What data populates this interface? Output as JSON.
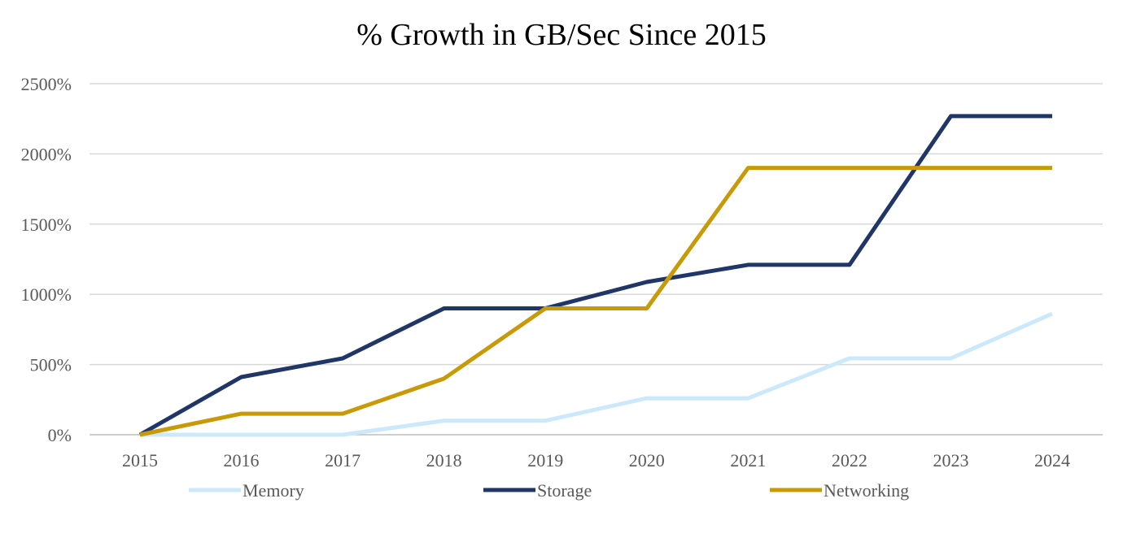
{
  "chart_data": {
    "type": "line",
    "title": "% Growth in GB/Sec Since 2015",
    "xlabel": "",
    "ylabel": "",
    "categories": [
      "2015",
      "2016",
      "2017",
      "2018",
      "2019",
      "2020",
      "2021",
      "2022",
      "2023",
      "2024"
    ],
    "ylim": [
      0,
      2500
    ],
    "yticks": [
      0,
      500,
      1000,
      1500,
      2000,
      2500
    ],
    "ytick_labels": [
      "0%",
      "500%",
      "1000%",
      "1500%",
      "2000%",
      "2500%"
    ],
    "grid": true,
    "legend_position": "bottom",
    "series": [
      {
        "name": "Memory",
        "color": "#cce9fb",
        "values": [
          0,
          0,
          0,
          100,
          100,
          260,
          260,
          544,
          544,
          862
        ]
      },
      {
        "name": "Storage",
        "color": "#1f3666",
        "values": [
          0,
          411,
          544,
          900,
          900,
          1088,
          1210,
          1210,
          2269,
          2269
        ]
      },
      {
        "name": "Networking",
        "color": "#c89a08",
        "values": [
          0,
          150,
          150,
          400,
          900,
          900,
          1900,
          1900,
          1900,
          1900
        ]
      }
    ]
  }
}
